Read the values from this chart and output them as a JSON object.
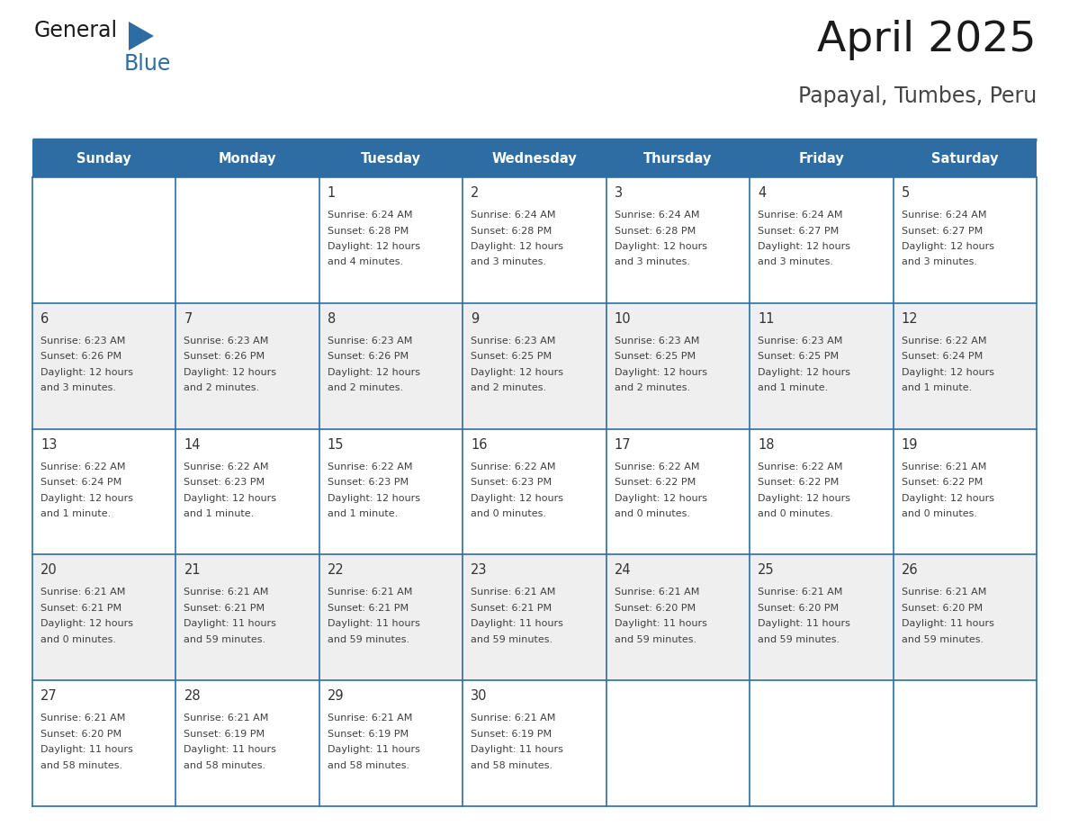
{
  "title": "April 2025",
  "subtitle": "Papayal, Tumbes, Peru",
  "days_of_week": [
    "Sunday",
    "Monday",
    "Tuesday",
    "Wednesday",
    "Thursday",
    "Friday",
    "Saturday"
  ],
  "header_bg": "#2E6DA4",
  "header_text": "#FFFFFF",
  "row_bg_odd": "#FFFFFF",
  "row_bg_even": "#EFEFEF",
  "grid_line_color": "#2E6DA4",
  "text_color": "#404040",
  "day_num_color": "#333333",
  "title_color": "#1a1a1a",
  "subtitle_color": "#444444",
  "logo_general_color": "#1a1a1a",
  "logo_blue_color": "#2E6DA4",
  "calendar_data": [
    [
      {
        "day": null,
        "sunrise": null,
        "sunset": null,
        "daylight": null
      },
      {
        "day": null,
        "sunrise": null,
        "sunset": null,
        "daylight": null
      },
      {
        "day": 1,
        "sunrise": "6:24 AM",
        "sunset": "6:28 PM",
        "daylight": "12 hours\nand 4 minutes."
      },
      {
        "day": 2,
        "sunrise": "6:24 AM",
        "sunset": "6:28 PM",
        "daylight": "12 hours\nand 3 minutes."
      },
      {
        "day": 3,
        "sunrise": "6:24 AM",
        "sunset": "6:28 PM",
        "daylight": "12 hours\nand 3 minutes."
      },
      {
        "day": 4,
        "sunrise": "6:24 AM",
        "sunset": "6:27 PM",
        "daylight": "12 hours\nand 3 minutes."
      },
      {
        "day": 5,
        "sunrise": "6:24 AM",
        "sunset": "6:27 PM",
        "daylight": "12 hours\nand 3 minutes."
      }
    ],
    [
      {
        "day": 6,
        "sunrise": "6:23 AM",
        "sunset": "6:26 PM",
        "daylight": "12 hours\nand 3 minutes."
      },
      {
        "day": 7,
        "sunrise": "6:23 AM",
        "sunset": "6:26 PM",
        "daylight": "12 hours\nand 2 minutes."
      },
      {
        "day": 8,
        "sunrise": "6:23 AM",
        "sunset": "6:26 PM",
        "daylight": "12 hours\nand 2 minutes."
      },
      {
        "day": 9,
        "sunrise": "6:23 AM",
        "sunset": "6:25 PM",
        "daylight": "12 hours\nand 2 minutes."
      },
      {
        "day": 10,
        "sunrise": "6:23 AM",
        "sunset": "6:25 PM",
        "daylight": "12 hours\nand 2 minutes."
      },
      {
        "day": 11,
        "sunrise": "6:23 AM",
        "sunset": "6:25 PM",
        "daylight": "12 hours\nand 1 minute."
      },
      {
        "day": 12,
        "sunrise": "6:22 AM",
        "sunset": "6:24 PM",
        "daylight": "12 hours\nand 1 minute."
      }
    ],
    [
      {
        "day": 13,
        "sunrise": "6:22 AM",
        "sunset": "6:24 PM",
        "daylight": "12 hours\nand 1 minute."
      },
      {
        "day": 14,
        "sunrise": "6:22 AM",
        "sunset": "6:23 PM",
        "daylight": "12 hours\nand 1 minute."
      },
      {
        "day": 15,
        "sunrise": "6:22 AM",
        "sunset": "6:23 PM",
        "daylight": "12 hours\nand 1 minute."
      },
      {
        "day": 16,
        "sunrise": "6:22 AM",
        "sunset": "6:23 PM",
        "daylight": "12 hours\nand 0 minutes."
      },
      {
        "day": 17,
        "sunrise": "6:22 AM",
        "sunset": "6:22 PM",
        "daylight": "12 hours\nand 0 minutes."
      },
      {
        "day": 18,
        "sunrise": "6:22 AM",
        "sunset": "6:22 PM",
        "daylight": "12 hours\nand 0 minutes."
      },
      {
        "day": 19,
        "sunrise": "6:21 AM",
        "sunset": "6:22 PM",
        "daylight": "12 hours\nand 0 minutes."
      }
    ],
    [
      {
        "day": 20,
        "sunrise": "6:21 AM",
        "sunset": "6:21 PM",
        "daylight": "12 hours\nand 0 minutes."
      },
      {
        "day": 21,
        "sunrise": "6:21 AM",
        "sunset": "6:21 PM",
        "daylight": "11 hours\nand 59 minutes."
      },
      {
        "day": 22,
        "sunrise": "6:21 AM",
        "sunset": "6:21 PM",
        "daylight": "11 hours\nand 59 minutes."
      },
      {
        "day": 23,
        "sunrise": "6:21 AM",
        "sunset": "6:21 PM",
        "daylight": "11 hours\nand 59 minutes."
      },
      {
        "day": 24,
        "sunrise": "6:21 AM",
        "sunset": "6:20 PM",
        "daylight": "11 hours\nand 59 minutes."
      },
      {
        "day": 25,
        "sunrise": "6:21 AM",
        "sunset": "6:20 PM",
        "daylight": "11 hours\nand 59 minutes."
      },
      {
        "day": 26,
        "sunrise": "6:21 AM",
        "sunset": "6:20 PM",
        "daylight": "11 hours\nand 59 minutes."
      }
    ],
    [
      {
        "day": 27,
        "sunrise": "6:21 AM",
        "sunset": "6:20 PM",
        "daylight": "11 hours\nand 58 minutes."
      },
      {
        "day": 28,
        "sunrise": "6:21 AM",
        "sunset": "6:19 PM",
        "daylight": "11 hours\nand 58 minutes."
      },
      {
        "day": 29,
        "sunrise": "6:21 AM",
        "sunset": "6:19 PM",
        "daylight": "11 hours\nand 58 minutes."
      },
      {
        "day": 30,
        "sunrise": "6:21 AM",
        "sunset": "6:19 PM",
        "daylight": "11 hours\nand 58 minutes."
      },
      {
        "day": null,
        "sunrise": null,
        "sunset": null,
        "daylight": null
      },
      {
        "day": null,
        "sunrise": null,
        "sunset": null,
        "daylight": null
      },
      {
        "day": null,
        "sunrise": null,
        "sunset": null,
        "daylight": null
      }
    ]
  ],
  "num_rows": 5,
  "num_cols": 7,
  "fig_width": 11.88,
  "fig_height": 9.18
}
